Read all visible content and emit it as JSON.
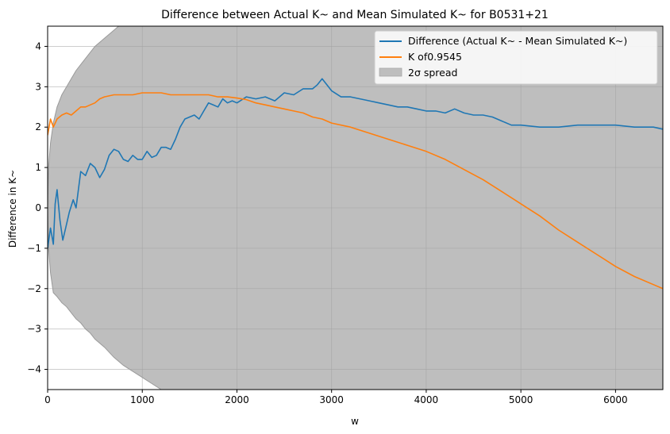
{
  "chart_data": {
    "type": "line",
    "title": "Difference between Actual K~ and Mean Simulated K~ for B0531+21",
    "xlabel": "w",
    "ylabel": "Difference in K~",
    "xlim": [
      0,
      6500
    ],
    "ylim": [
      -4.5,
      4.5
    ],
    "xticks": [
      0,
      1000,
      2000,
      3000,
      4000,
      5000,
      6000
    ],
    "yticks": [
      -4,
      -3,
      -2,
      -1,
      0,
      1,
      2,
      3,
      4
    ],
    "grid": true,
    "legend_position": "top-right",
    "series": [
      {
        "name": "Difference (Actual K~ - Mean Simulated K~)",
        "color": "#1f77b4",
        "x": [
          0,
          30,
          60,
          80,
          100,
          130,
          160,
          190,
          230,
          270,
          300,
          350,
          400,
          450,
          500,
          550,
          600,
          650,
          700,
          750,
          800,
          850,
          900,
          950,
          1000,
          1050,
          1100,
          1150,
          1200,
          1250,
          1300,
          1350,
          1400,
          1450,
          1500,
          1550,
          1600,
          1650,
          1700,
          1750,
          1800,
          1850,
          1900,
          1950,
          2000,
          2100,
          2200,
          2300,
          2400,
          2500,
          2600,
          2700,
          2800,
          2850,
          2900,
          3000,
          3100,
          3200,
          3300,
          3400,
          3500,
          3600,
          3700,
          3800,
          3900,
          4000,
          4100,
          4200,
          4300,
          4400,
          4500,
          4600,
          4700,
          4800,
          4900,
          5000,
          5200,
          5400,
          5600,
          5800,
          6000,
          6200,
          6400,
          6500
        ],
        "values": [
          -1.0,
          -0.5,
          -0.9,
          0.1,
          0.45,
          -0.3,
          -0.8,
          -0.5,
          -0.1,
          0.2,
          0.0,
          0.9,
          0.8,
          1.1,
          1.0,
          0.75,
          0.95,
          1.3,
          1.45,
          1.4,
          1.2,
          1.15,
          1.3,
          1.2,
          1.2,
          1.4,
          1.25,
          1.3,
          1.5,
          1.5,
          1.45,
          1.7,
          2.0,
          2.2,
          2.25,
          2.3,
          2.2,
          2.4,
          2.6,
          2.55,
          2.5,
          2.7,
          2.6,
          2.65,
          2.6,
          2.75,
          2.7,
          2.75,
          2.65,
          2.85,
          2.8,
          2.95,
          2.95,
          3.05,
          3.2,
          2.9,
          2.75,
          2.75,
          2.7,
          2.65,
          2.6,
          2.55,
          2.5,
          2.5,
          2.45,
          2.4,
          2.4,
          2.35,
          2.45,
          2.35,
          2.3,
          2.3,
          2.25,
          2.15,
          2.05,
          2.05,
          2.0,
          2.0,
          2.05,
          2.05,
          2.05,
          2.0,
          2.0,
          1.95
        ]
      },
      {
        "name": "K of0.9545",
        "color": "#ff7f0e",
        "x": [
          0,
          30,
          60,
          100,
          150,
          200,
          250,
          300,
          350,
          400,
          450,
          500,
          550,
          600,
          700,
          800,
          900,
          1000,
          1100,
          1200,
          1300,
          1400,
          1500,
          1600,
          1700,
          1800,
          1900,
          2000,
          2100,
          2200,
          2300,
          2400,
          2500,
          2600,
          2700,
          2800,
          2900,
          3000,
          3200,
          3400,
          3600,
          3800,
          4000,
          4200,
          4400,
          4600,
          4800,
          5000,
          5200,
          5400,
          5600,
          5800,
          6000,
          6200,
          6400,
          6500
        ],
        "values": [
          1.8,
          2.2,
          2.0,
          2.2,
          2.3,
          2.35,
          2.3,
          2.4,
          2.5,
          2.5,
          2.55,
          2.6,
          2.7,
          2.75,
          2.8,
          2.8,
          2.8,
          2.85,
          2.85,
          2.85,
          2.8,
          2.8,
          2.8,
          2.8,
          2.8,
          2.75,
          2.75,
          2.72,
          2.68,
          2.6,
          2.55,
          2.5,
          2.45,
          2.4,
          2.35,
          2.25,
          2.2,
          2.1,
          2.0,
          1.85,
          1.7,
          1.55,
          1.4,
          1.2,
          0.95,
          0.7,
          0.4,
          0.1,
          -0.2,
          -0.55,
          -0.85,
          -1.15,
          -1.45,
          -1.7,
          -1.9,
          -2.0
        ]
      },
      {
        "name": "2σ spread",
        "color": "#bebebe",
        "type": "band",
        "x": [
          0,
          10,
          30,
          60,
          100,
          150,
          200,
          250,
          300,
          350,
          400,
          450,
          500,
          600,
          700,
          800,
          900,
          1000,
          1100,
          1200,
          1300
        ],
        "upper": [
          0.0,
          1.0,
          1.6,
          2.1,
          2.5,
          2.8,
          3.0,
          3.2,
          3.4,
          3.55,
          3.7,
          3.85,
          4.0,
          4.2,
          4.4,
          4.6,
          4.8,
          5.0,
          5.2,
          5.35,
          5.5
        ],
        "lower": [
          0.0,
          -1.0,
          -1.6,
          -2.1,
          -2.2,
          -2.35,
          -2.45,
          -2.6,
          -2.75,
          -2.85,
          -3.0,
          -3.1,
          -3.25,
          -3.45,
          -3.7,
          -3.9,
          -4.05,
          -4.2,
          -4.35,
          -4.5,
          -4.65
        ],
        "note_beyond": "extends past plot limits for larger w"
      }
    ]
  }
}
